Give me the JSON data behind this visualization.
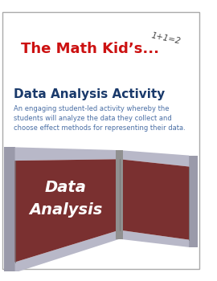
{
  "bg_color": "#ffffff",
  "border_color": "#aaaaaa",
  "title_text": "The Math Kid’s...",
  "title_color": "#cc1111",
  "subtitle_text": "Data Analysis Activity",
  "subtitle_color": "#1a3a6b",
  "description_lines": [
    "An engaging student-led activity whereby the",
    "students will analyze the data they collect and",
    "choose effect methods for representing their data."
  ],
  "description_color": "#4a6fa5",
  "math_annotation": "1+1=2",
  "box_main_color": "#7a3030",
  "box_light_color": "#c8b0b0",
  "box_gray_color": "#b8b8c8",
  "box_dark_gray": "#989898",
  "box_text1": "Data",
  "box_text2": "Analysis",
  "box_text_color": "#ffffff"
}
